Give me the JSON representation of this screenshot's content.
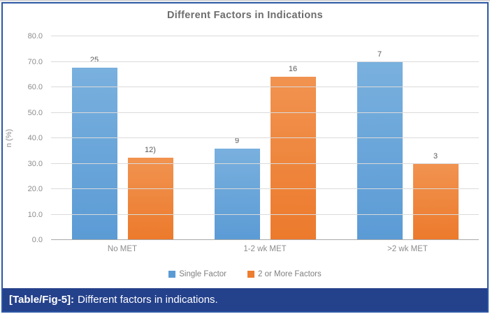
{
  "figure": {
    "caption_label": "[Table/Fig-5]:",
    "caption_text": "Different factors in indications."
  },
  "chart_data": {
    "type": "bar",
    "title": "Different Factors in Indications",
    "xlabel": "",
    "ylabel": "n (%)",
    "categories": [
      "No MET",
      "1-2 wk MET",
      ">2 wk MET"
    ],
    "series": [
      {
        "name": "Single Factor",
        "color": "#5b9bd5",
        "values": [
          67.6,
          36.0,
          70.0
        ],
        "labels": [
          "25",
          "9",
          "7"
        ]
      },
      {
        "name": "2 or More Factors",
        "color": "#ed7d31",
        "values": [
          32.4,
          64.0,
          30.0
        ],
        "labels": [
          "12)",
          "16",
          "3"
        ]
      }
    ],
    "ylim": [
      0,
      80
    ],
    "yticks": [
      "0.0",
      "10.0",
      "20.0",
      "30.0",
      "40.0",
      "50.0",
      "60.0",
      "70.0",
      "80.0"
    ],
    "grid": "horizontal",
    "legend_position": "bottom"
  },
  "colors": {
    "bar_blue": "#5b9bd5",
    "bar_orange": "#ed7d31",
    "caption_background": "#24418b",
    "frame_border": "#2b57a3",
    "title_text": "#6d6d6d",
    "axis_text": "#8c8c8c",
    "gridline": "#dadada"
  }
}
